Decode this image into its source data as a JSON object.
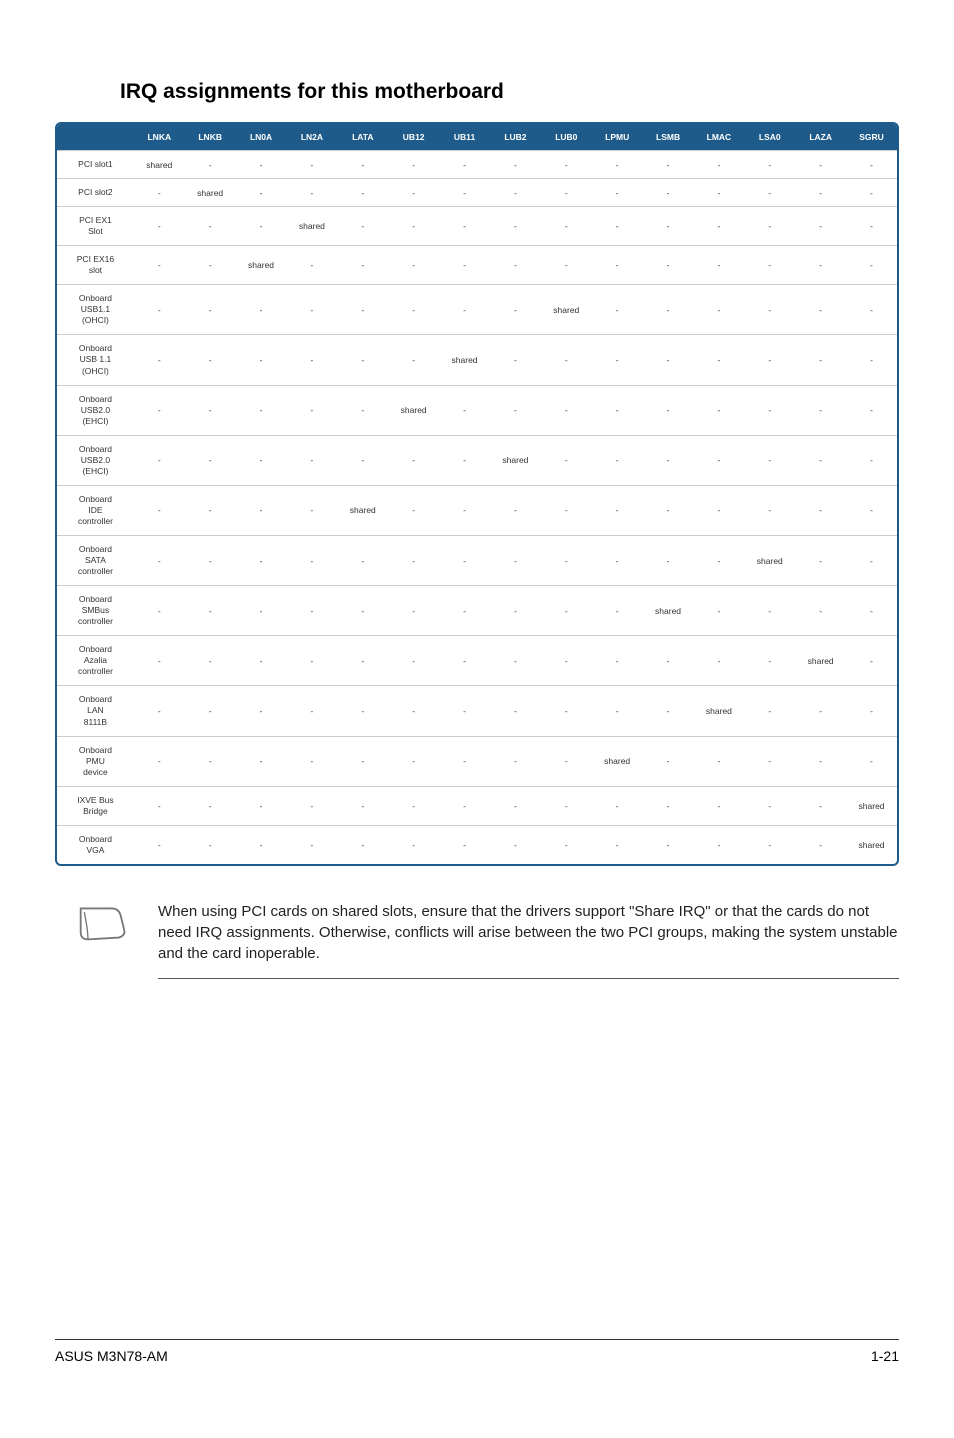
{
  "title": "IRQ assignments for this motherboard",
  "table": {
    "columns": [
      "",
      "LNKA",
      "LNKB",
      "LN0A",
      "LN2A",
      "LATA",
      "UB12",
      "UB11",
      "LUB2",
      "LUB0",
      "LPMU",
      "LSMB",
      "LMAC",
      "LSA0",
      "LAZA",
      "SGRU"
    ],
    "rows": [
      {
        "label": "PCI slot1",
        "cells": [
          "shared",
          "-",
          "-",
          "-",
          "-",
          "-",
          "-",
          "-",
          "-",
          "-",
          "-",
          "-",
          "-",
          "-",
          "-"
        ]
      },
      {
        "label": "PCI slot2",
        "cells": [
          "-",
          "shared",
          "-",
          "-",
          "-",
          "-",
          "-",
          "-",
          "-",
          "-",
          "-",
          "-",
          "-",
          "-",
          "-"
        ]
      },
      {
        "label": "PCI EX1\nSlot",
        "cells": [
          "-",
          "-",
          "-",
          "shared",
          "-",
          "-",
          "-",
          "-",
          "-",
          "-",
          "-",
          "-",
          "-",
          "-",
          "-"
        ]
      },
      {
        "label": "PCI EX16\nslot",
        "cells": [
          "-",
          "-",
          "shared",
          "-",
          "-",
          "-",
          "-",
          "-",
          "-",
          "-",
          "-",
          "-",
          "-",
          "-",
          "-"
        ]
      },
      {
        "label": "Onboard\nUSB1.1\n(OHCI)",
        "cells": [
          "-",
          "-",
          "-",
          "-",
          "-",
          "-",
          "-",
          "-",
          "shared",
          "-",
          "-",
          "-",
          "-",
          "-",
          "-"
        ]
      },
      {
        "label": "Onboard\nUSB 1.1\n(OHCI)",
        "cells": [
          "-",
          "-",
          "-",
          "-",
          "-",
          "-",
          "shared",
          "-",
          "-",
          "-",
          "-",
          "-",
          "-",
          "-",
          "-"
        ]
      },
      {
        "label": "Onboard\nUSB2.0\n(EHCI)",
        "cells": [
          "-",
          "-",
          "-",
          "-",
          "-",
          "shared",
          "-",
          "-",
          "-",
          "-",
          "-",
          "-",
          "-",
          "-",
          "-"
        ]
      },
      {
        "label": "Onboard\nUSB2.0\n(EHCI)",
        "cells": [
          "-",
          "-",
          "-",
          "-",
          "-",
          "-",
          "-",
          "shared",
          "-",
          "-",
          "-",
          "-",
          "-",
          "-",
          "-"
        ]
      },
      {
        "label": "Onboard\nIDE\ncontroller",
        "cells": [
          "-",
          "-",
          "-",
          "-",
          "shared",
          "-",
          "-",
          "-",
          "-",
          "-",
          "-",
          "-",
          "-",
          "-",
          "-"
        ]
      },
      {
        "label": "Onboard\nSATA\ncontroller",
        "cells": [
          "-",
          "-",
          "-",
          "-",
          "-",
          "-",
          "-",
          "-",
          "-",
          "-",
          "-",
          "-",
          "shared",
          "-",
          "-"
        ]
      },
      {
        "label": "Onboard\nSMBus\ncontroller",
        "cells": [
          "-",
          "-",
          "-",
          "-",
          "-",
          "-",
          "-",
          "-",
          "-",
          "-",
          "shared",
          "-",
          "-",
          "-",
          "-"
        ]
      },
      {
        "label": "Onboard\nAzalia\ncontroller",
        "cells": [
          "-",
          "-",
          "-",
          "-",
          "-",
          "-",
          "-",
          "-",
          "-",
          "-",
          "-",
          "-",
          "-",
          "shared",
          "-"
        ]
      },
      {
        "label": "Onboard\nLAN\n8111B",
        "cells": [
          "-",
          "-",
          "-",
          "-",
          "-",
          "-",
          "-",
          "-",
          "-",
          "-",
          "-",
          "shared",
          "-",
          "-",
          "-"
        ]
      },
      {
        "label": "Onboard\nPMU\ndevice",
        "cells": [
          "-",
          "-",
          "-",
          "-",
          "-",
          "-",
          "-",
          "-",
          "-",
          "shared",
          "-",
          "-",
          "-",
          "-",
          "-"
        ]
      },
      {
        "label": "IXVE Bus\nBridge",
        "cells": [
          "-",
          "-",
          "-",
          "-",
          "-",
          "-",
          "-",
          "-",
          "-",
          "-",
          "-",
          "-",
          "-",
          "-",
          "shared"
        ]
      },
      {
        "label": "Onboard\nVGA",
        "cells": [
          "-",
          "-",
          "-",
          "-",
          "-",
          "-",
          "-",
          "-",
          "-",
          "-",
          "-",
          "-",
          "-",
          "-",
          "shared"
        ]
      }
    ],
    "header_bg": "#1e5b8a",
    "header_fg": "#ffffff",
    "border_color": "#1e5b8a",
    "row_border": "#cccccc"
  },
  "note_text": "When using PCI cards on shared slots, ensure that the drivers support \"Share IRQ\" or that the cards do not need IRQ assignments. Otherwise, conflicts will arise between the two PCI groups, making the system unstable and the card inoperable.",
  "footer_left": "ASUS M3N78-AM",
  "footer_right": "1-21"
}
